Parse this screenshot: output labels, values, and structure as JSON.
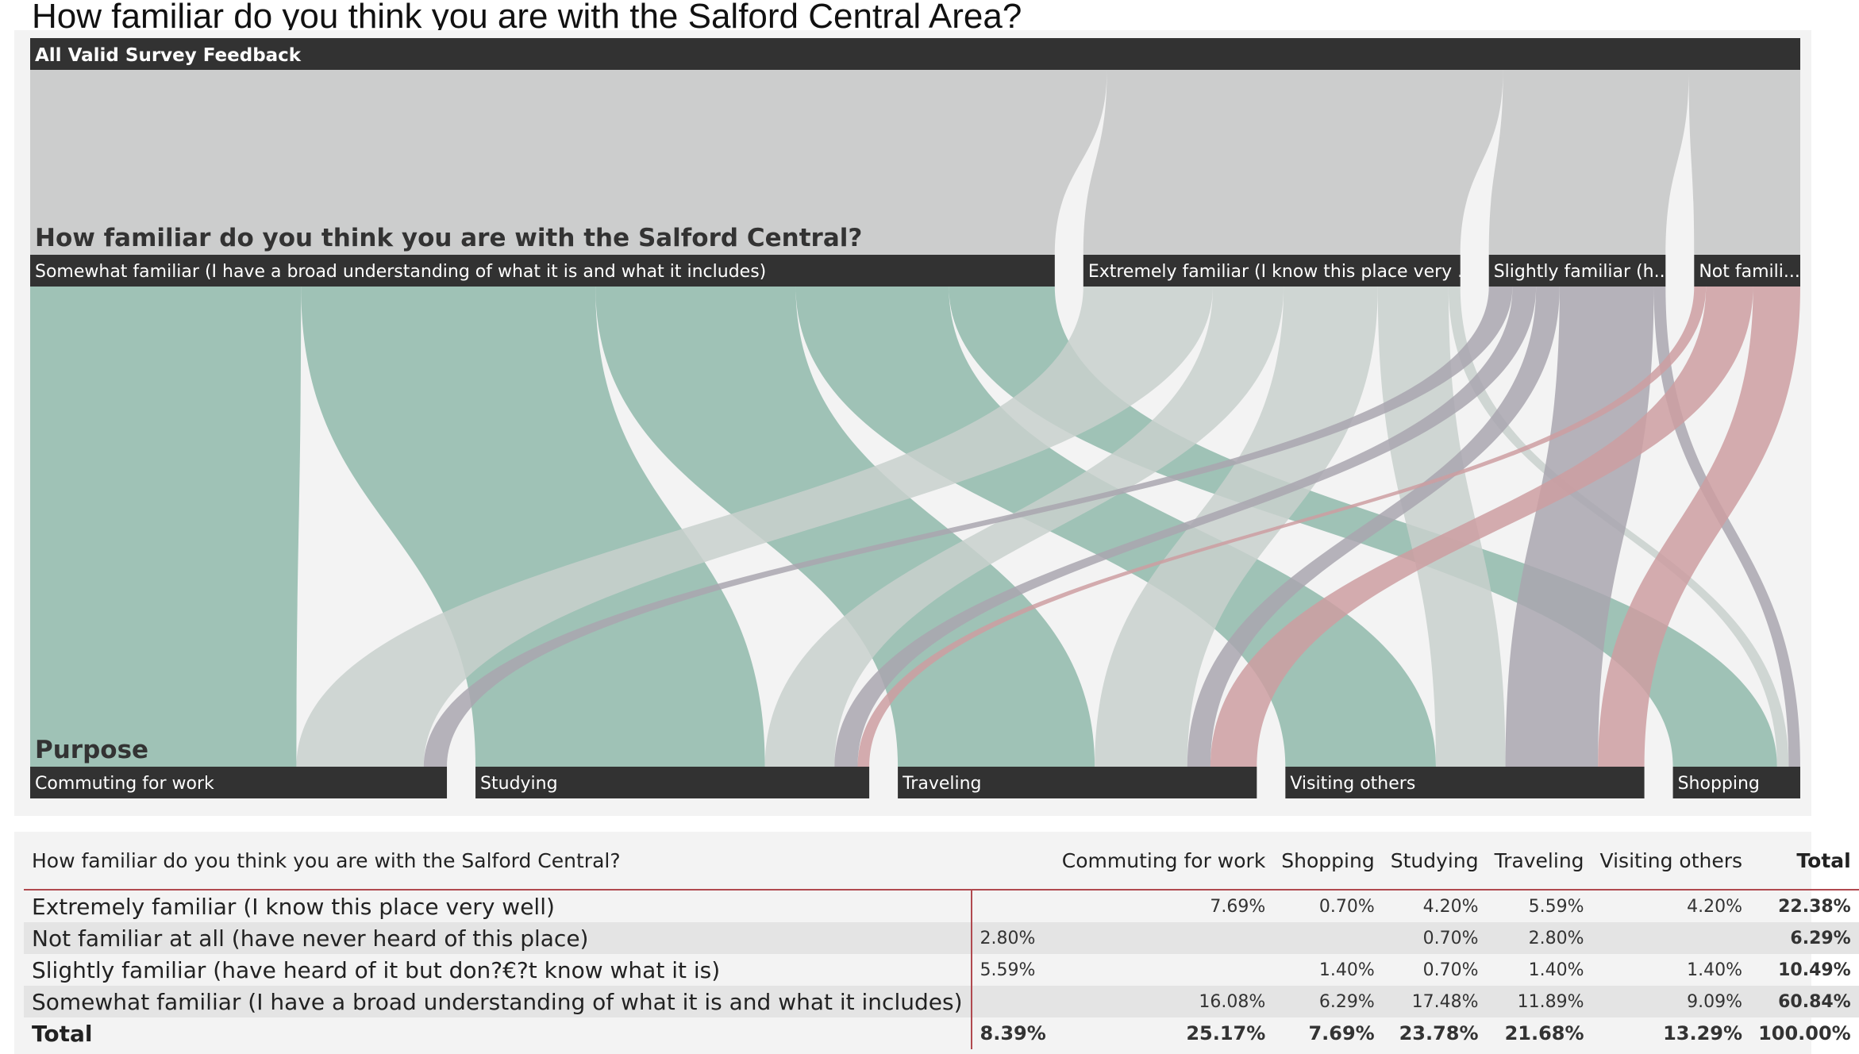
{
  "page": {
    "title": "How familiar do you think you are with the Salford Central Area?"
  },
  "sankey": {
    "root_label": "All Valid Survey Feedback",
    "familiarity_heading": "How familiar do you think you are with the Salford Central?",
    "purpose_heading": "Purpose",
    "familiarity_nodes": [
      {
        "id": "somewhat",
        "label": "Somewhat familiar (I have a broad understanding of what it is and what it includes)",
        "color": "#8fb9aa"
      },
      {
        "id": "extremely",
        "label": "Extremely familiar (I know this place very ...",
        "color": "#c8d0cc"
      },
      {
        "id": "slightly",
        "label": "Slightly familiar (h...",
        "color": "#a9a6af"
      },
      {
        "id": "notfam",
        "label": "Not famili...",
        "color": "#cc9ea1"
      }
    ],
    "purpose_nodes": [
      {
        "id": "commuting",
        "label": "Commuting for work"
      },
      {
        "id": "studying",
        "label": "Studying"
      },
      {
        "id": "traveling",
        "label": "Traveling"
      },
      {
        "id": "visiting",
        "label": "Visiting others"
      },
      {
        "id": "shopping",
        "label": "Shopping"
      }
    ],
    "colors": {
      "header": "#323232",
      "root_band": "#cccdcd",
      "panel": "#f3f3f3"
    }
  },
  "chart_data": {
    "type": "sankey",
    "title": "How familiar do you think you are with the Salford Central Area?",
    "unit": "percent of all valid survey feedback",
    "levels": [
      "All Valid Survey Feedback",
      "How familiar do you think you are with the Salford Central?",
      "Purpose"
    ],
    "links": [
      {
        "from": "Somewhat familiar",
        "to": "Commuting for work",
        "value": 16.08
      },
      {
        "from": "Somewhat familiar",
        "to": "Studying",
        "value": 17.48
      },
      {
        "from": "Somewhat familiar",
        "to": "Traveling",
        "value": 11.89
      },
      {
        "from": "Somewhat familiar",
        "to": "Visiting others",
        "value": 9.09
      },
      {
        "from": "Somewhat familiar",
        "to": "Shopping",
        "value": 6.29
      },
      {
        "from": "Extremely familiar",
        "to": "Commuting for work",
        "value": 7.69
      },
      {
        "from": "Extremely familiar",
        "to": "Studying",
        "value": 4.2
      },
      {
        "from": "Extremely familiar",
        "to": "Traveling",
        "value": 5.59
      },
      {
        "from": "Extremely familiar",
        "to": "Visiting others",
        "value": 4.2
      },
      {
        "from": "Extremely familiar",
        "to": "Shopping",
        "value": 0.7
      },
      {
        "from": "Slightly familiar",
        "to": "Commuting for work",
        "value": 1.4
      },
      {
        "from": "Slightly familiar",
        "to": "Studying",
        "value": 1.4
      },
      {
        "from": "Slightly familiar",
        "to": "Traveling",
        "value": 1.4
      },
      {
        "from": "Slightly familiar",
        "to": "Visiting others",
        "value": 5.59
      },
      {
        "from": "Slightly familiar",
        "to": "Shopping",
        "value": 0.7
      },
      {
        "from": "Not familiar at all",
        "to": "Studying",
        "value": 0.7
      },
      {
        "from": "Not familiar at all",
        "to": "Traveling",
        "value": 2.8
      },
      {
        "from": "Not familiar at all",
        "to": "Visiting others",
        "value": 2.8
      }
    ]
  },
  "table": {
    "header_label": "How familiar do you think you are with the Salford Central?",
    "columns": [
      "Commuting for work",
      "Shopping",
      "Studying",
      "Traveling",
      "Visiting others",
      "Total"
    ],
    "rows": [
      {
        "label": "Extremely familiar (I know this place very well)",
        "cells": [
          "",
          "7.69%",
          "0.70%",
          "4.20%",
          "5.59%",
          "4.20%"
        ],
        "total": "22.38%"
      },
      {
        "label": "Not familiar at all (have never heard of this place)",
        "cells": [
          "2.80%",
          "",
          "",
          "0.70%",
          "2.80%",
          ""
        ],
        "total": "6.29%"
      },
      {
        "label": "Slightly familiar (have heard of it but don?€?t know what it is)",
        "cells": [
          "5.59%",
          "",
          "1.40%",
          "0.70%",
          "1.40%",
          "1.40%"
        ],
        "total": "10.49%"
      },
      {
        "label": "Somewhat familiar (I have a broad understanding of what it is and what it includes)",
        "cells": [
          "",
          "16.08%",
          "6.29%",
          "17.48%",
          "11.89%",
          "9.09%"
        ],
        "total": "60.84%"
      }
    ],
    "total_row": {
      "label": "Total",
      "cells": [
        "8.39%",
        "25.17%",
        "7.69%",
        "23.78%",
        "21.68%",
        "13.29%"
      ],
      "total": "100.00%"
    }
  }
}
